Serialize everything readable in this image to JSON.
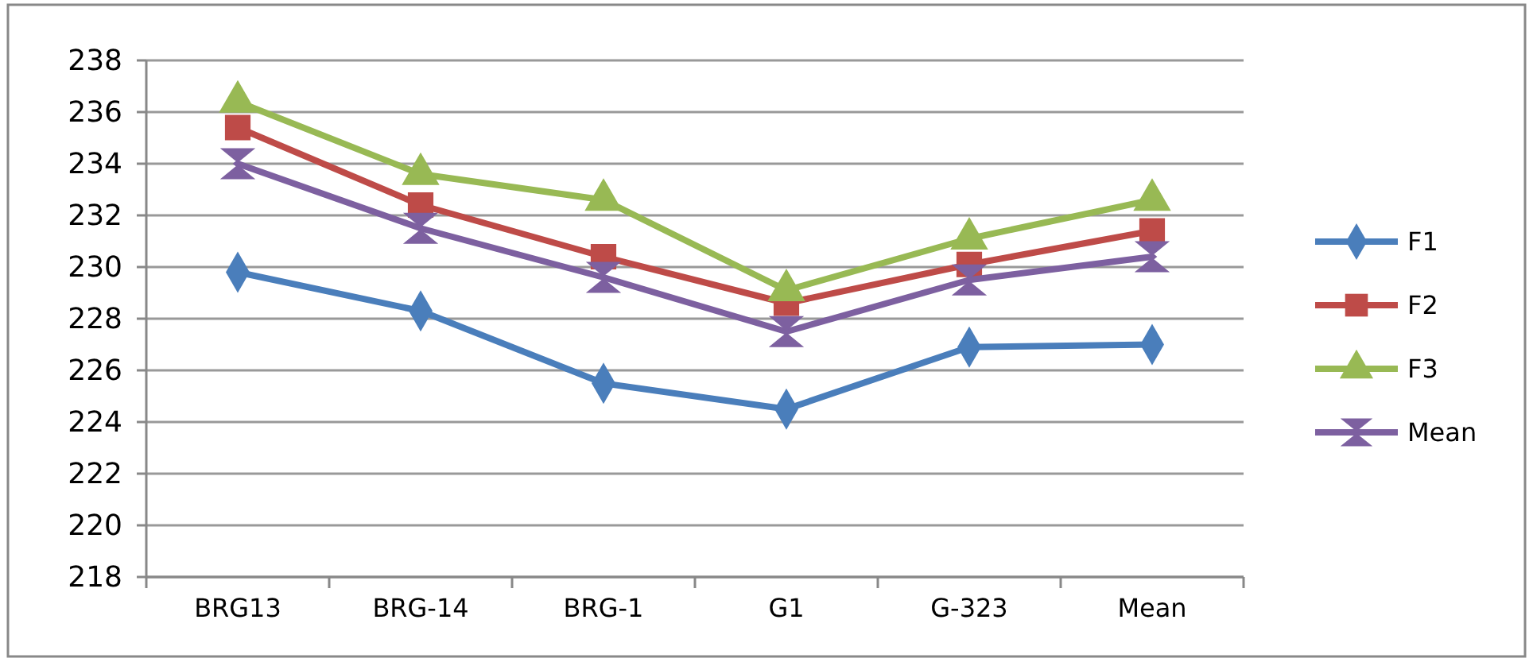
{
  "chart_data": {
    "type": "line",
    "categories": [
      "BRG13",
      "BRG-14",
      "BRG-1",
      "G1",
      "G-323",
      "Mean"
    ],
    "series": [
      {
        "name": "F1",
        "color": "#4a7ebb",
        "marker": "diamond",
        "values": [
          229.8,
          228.3,
          225.5,
          224.5,
          226.9,
          227.0
        ]
      },
      {
        "name": "F2",
        "color": "#be4b48",
        "marker": "square",
        "values": [
          235.4,
          232.4,
          230.4,
          228.6,
          230.1,
          231.4
        ]
      },
      {
        "name": "F3",
        "color": "#98b954",
        "marker": "triangle",
        "values": [
          236.4,
          233.6,
          232.6,
          229.1,
          231.1,
          232.6
        ]
      },
      {
        "name": "Mean",
        "color": "#7d60a0",
        "marker": "cross",
        "values": [
          234.0,
          231.5,
          229.6,
          227.5,
          229.5,
          230.4
        ]
      }
    ],
    "ylim": [
      218,
      238
    ],
    "yticks": [
      218,
      220,
      222,
      224,
      226,
      228,
      230,
      232,
      234,
      236,
      238
    ],
    "grid": "y",
    "legend": "right"
  }
}
